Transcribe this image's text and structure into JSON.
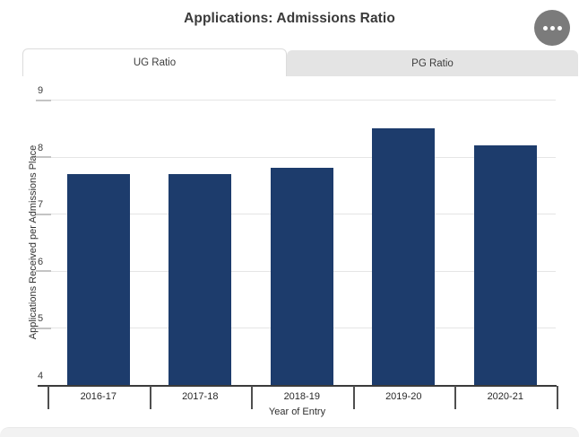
{
  "header": {
    "title": "Applications: Admissions Ratio"
  },
  "icons": {
    "more_options": "ellipsis-icon"
  },
  "tabs": [
    {
      "label": "UG Ratio",
      "active": true
    },
    {
      "label": "PG Ratio",
      "active": false
    }
  ],
  "chart_data": {
    "type": "bar",
    "title": "Applications: Admissions Ratio",
    "categories": [
      "2016-17",
      "2017-18",
      "2018-19",
      "2019-20",
      "2020-21"
    ],
    "values": [
      7.7,
      7.7,
      7.8,
      8.5,
      8.2
    ],
    "xlabel": "Year of Entry",
    "ylabel": "Applications Received per Admissions Place",
    "ylim": [
      4,
      9
    ],
    "yticks": [
      4,
      5,
      6,
      7,
      8,
      9
    ],
    "grid": "horizontal",
    "legend": "none",
    "bar_color": "#1d3c6c"
  }
}
